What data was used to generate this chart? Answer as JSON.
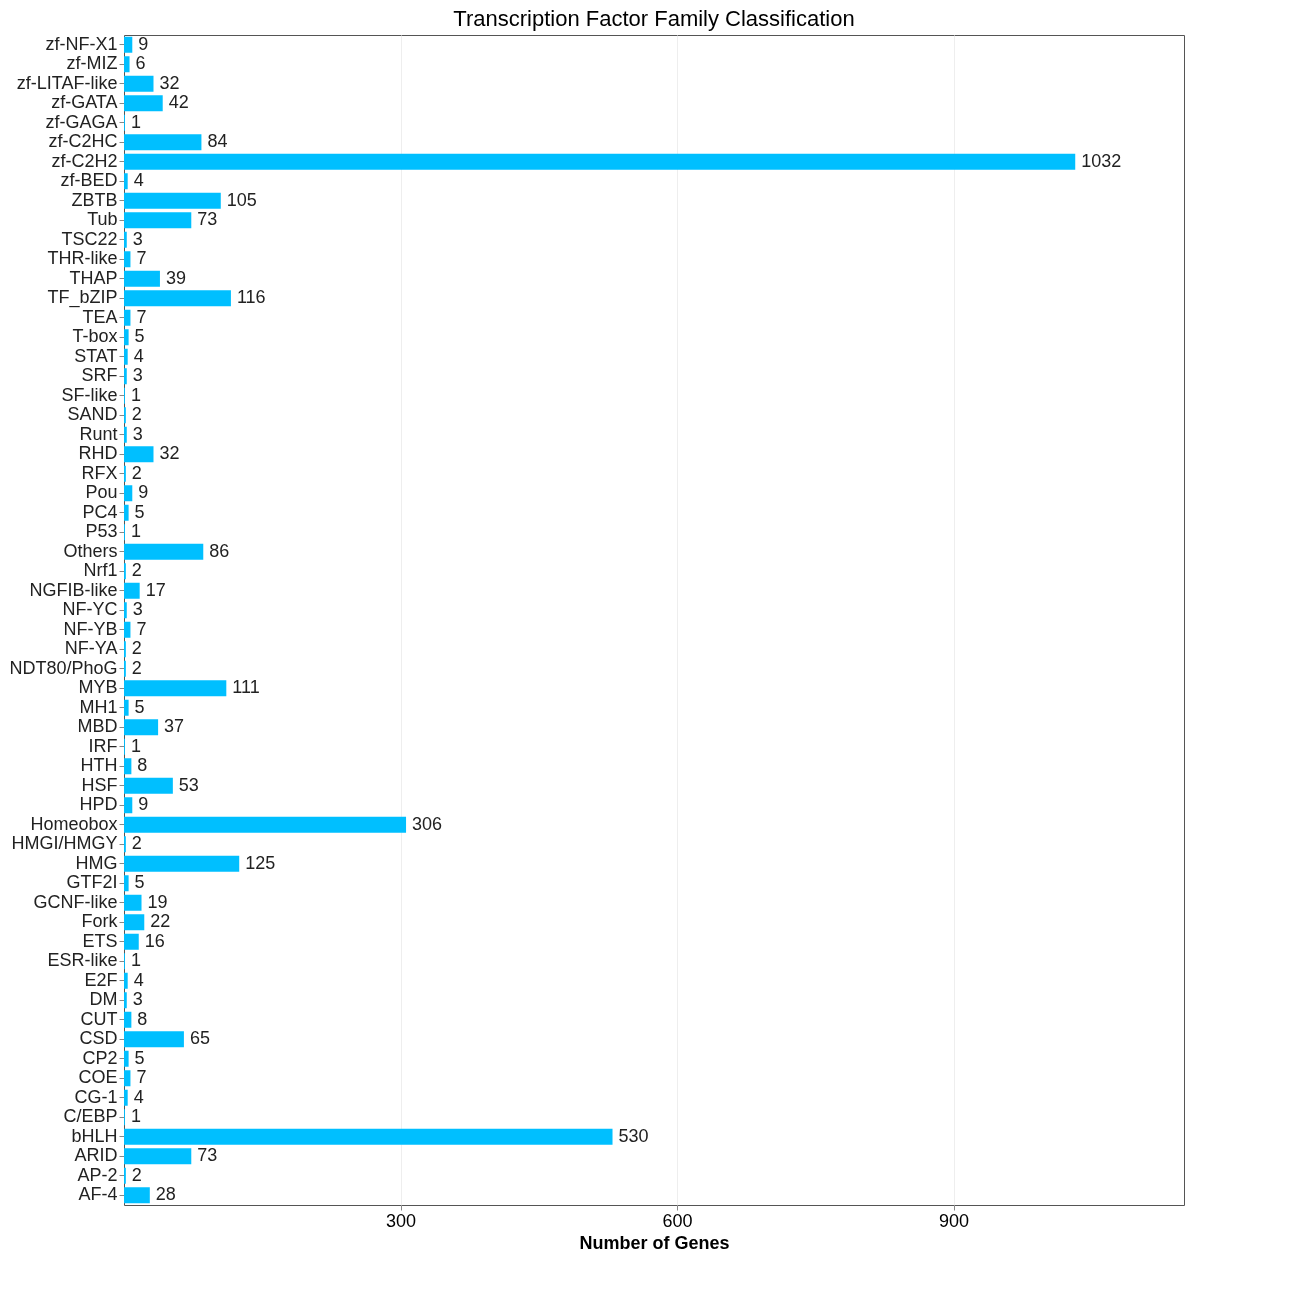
{
  "chart_data": {
    "type": "bar",
    "orientation": "horizontal",
    "title": "Transcription Factor Family Classification",
    "xlabel": "Number of Genes",
    "categories": [
      "zf-NF-X1",
      "zf-MIZ",
      "zf-LITAF-like",
      "zf-GATA",
      "zf-GAGA",
      "zf-C2HC",
      "zf-C2H2",
      "zf-BED",
      "ZBTB",
      "Tub",
      "TSC22",
      "THR-like",
      "THAP",
      "TF_bZIP",
      "TEA",
      "T-box",
      "STAT",
      "SRF",
      "SF-like",
      "SAND",
      "Runt",
      "RHD",
      "RFX",
      "Pou",
      "PC4",
      "P53",
      "Others",
      "Nrf1",
      "NGFIB-like",
      "NF-YC",
      "NF-YB",
      "NF-YA",
      "NDT80/PhoG",
      "MYB",
      "MH1",
      "MBD",
      "IRF",
      "HTH",
      "HSF",
      "HPD",
      "Homeobox",
      "HMGI/HMGY",
      "HMG",
      "GTF2I",
      "GCNF-like",
      "Fork",
      "ETS",
      "ESR-like",
      "E2F",
      "DM",
      "CUT",
      "CSD",
      "CP2",
      "COE",
      "CG-1",
      "C/EBP",
      "bHLH",
      "ARID",
      "AP-2",
      "AF-4"
    ],
    "values": [
      9,
      6,
      32,
      42,
      1,
      84,
      1032,
      4,
      105,
      73,
      3,
      7,
      39,
      116,
      7,
      5,
      4,
      3,
      1,
      2,
      3,
      32,
      2,
      9,
      5,
      1,
      86,
      2,
      17,
      3,
      7,
      2,
      2,
      111,
      5,
      37,
      1,
      8,
      53,
      9,
      306,
      2,
      125,
      5,
      19,
      22,
      16,
      1,
      4,
      3,
      8,
      65,
      5,
      7,
      4,
      1,
      530,
      73,
      2,
      28
    ],
    "color": "#00bfff",
    "data_labels": true,
    "xlim": [
      0,
      1150
    ],
    "xticks": [
      300,
      600,
      900
    ],
    "grid": "x"
  }
}
